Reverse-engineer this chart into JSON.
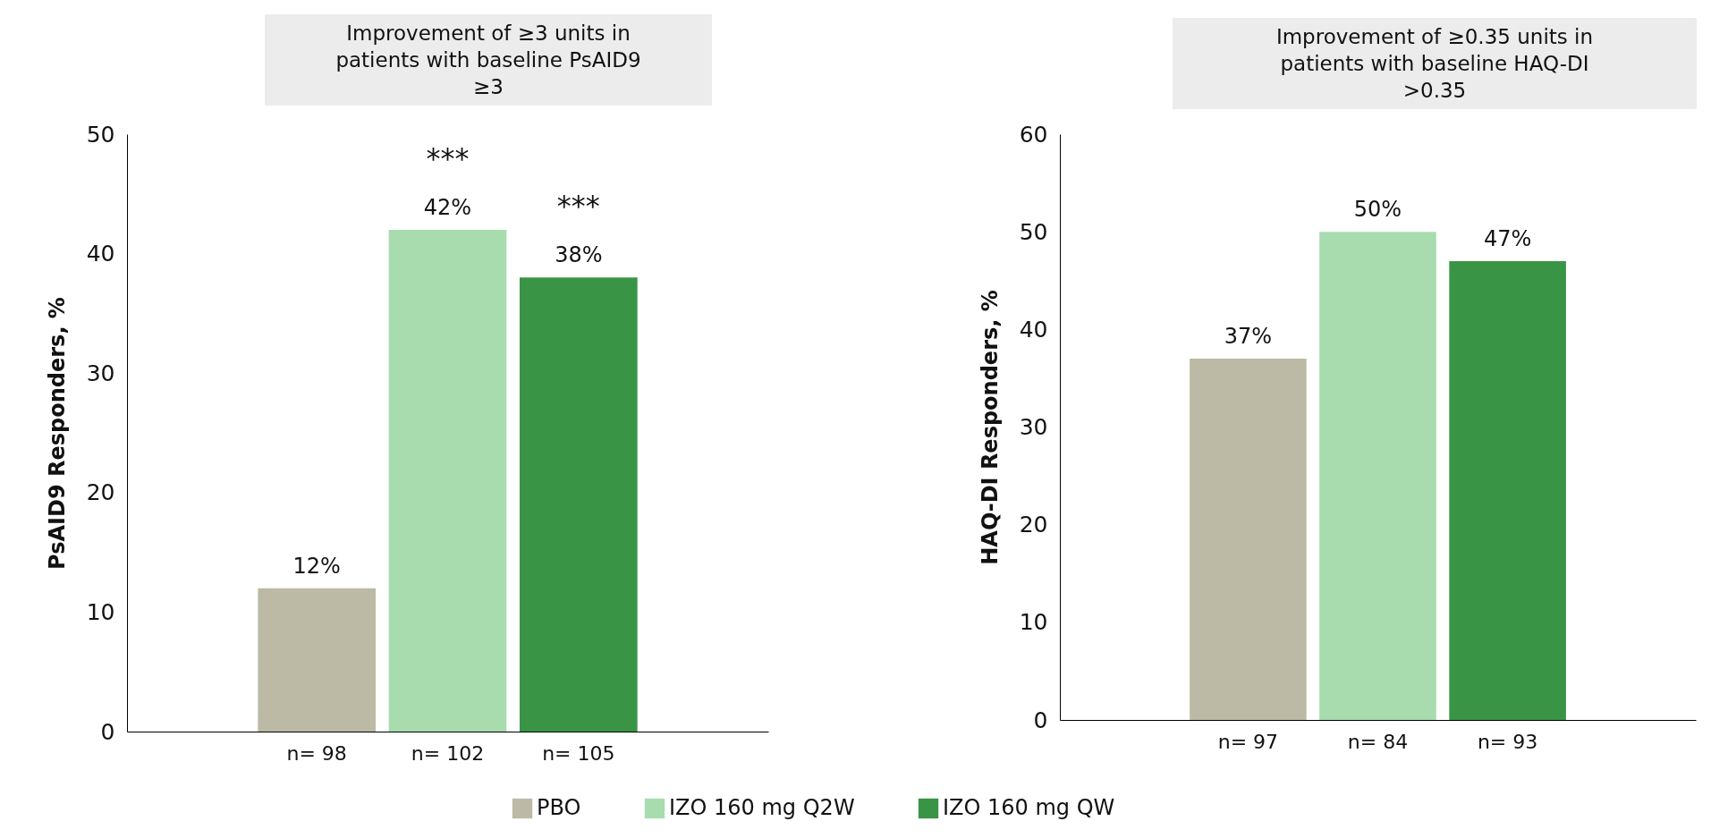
{
  "chart_data": [
    {
      "type": "bar",
      "title": "Improvement of ≥3 units in patients with baseline PsAID9 ≥3",
      "ylabel": "PsAID9 Responders, %",
      "categories": [
        "n= 98",
        "n= 102",
        "n= 105"
      ],
      "series": [
        {
          "name": "PBO",
          "color": "#bcbaa5",
          "values": [
            12,
            null,
            null
          ],
          "value_labels": [
            "12%",
            null,
            null
          ]
        },
        {
          "name": "IZO 160 mg Q2W",
          "color": "#a8dcaf",
          "values": [
            null,
            42,
            null
          ],
          "value_labels": [
            null,
            "42%",
            null
          ]
        },
        {
          "name": "IZO 160 mg QW",
          "color": "#3a9446",
          "values": [
            null,
            null,
            38
          ],
          "value_labels": [
            null,
            null,
            "38%"
          ]
        }
      ],
      "ylim": [
        0,
        50
      ],
      "yticks": [
        0,
        10,
        20,
        30,
        40,
        50
      ],
      "legend": "bottom",
      "annotations": [
        {
          "text": "***",
          "x": "n= 102",
          "y": 42
        },
        {
          "text": "***",
          "x": "n= 105",
          "y": 38
        }
      ]
    },
    {
      "type": "bar",
      "title": "Improvement of ≥0.35 units in patients with baseline HAQ-DI >0.35",
      "ylabel": "HAQ-DI Responders, %",
      "categories": [
        "n= 97",
        "n= 84",
        "n= 93"
      ],
      "series": [
        {
          "name": "PBO",
          "color": "#bcbaa5",
          "values": [
            37,
            null,
            null
          ],
          "value_labels": [
            "37%",
            null,
            null
          ]
        },
        {
          "name": "IZO 160 mg Q2W",
          "color": "#a8dcaf",
          "values": [
            null,
            50,
            null
          ],
          "value_labels": [
            null,
            "50%",
            null
          ]
        },
        {
          "name": "IZO 160 mg QW",
          "color": "#3a9446",
          "values": [
            null,
            null,
            47
          ],
          "value_labels": [
            null,
            null,
            "47%"
          ]
        }
      ],
      "ylim": [
        0,
        60
      ],
      "yticks": [
        0,
        10,
        20,
        30,
        40,
        50,
        60
      ],
      "legend": "bottom"
    }
  ]
}
